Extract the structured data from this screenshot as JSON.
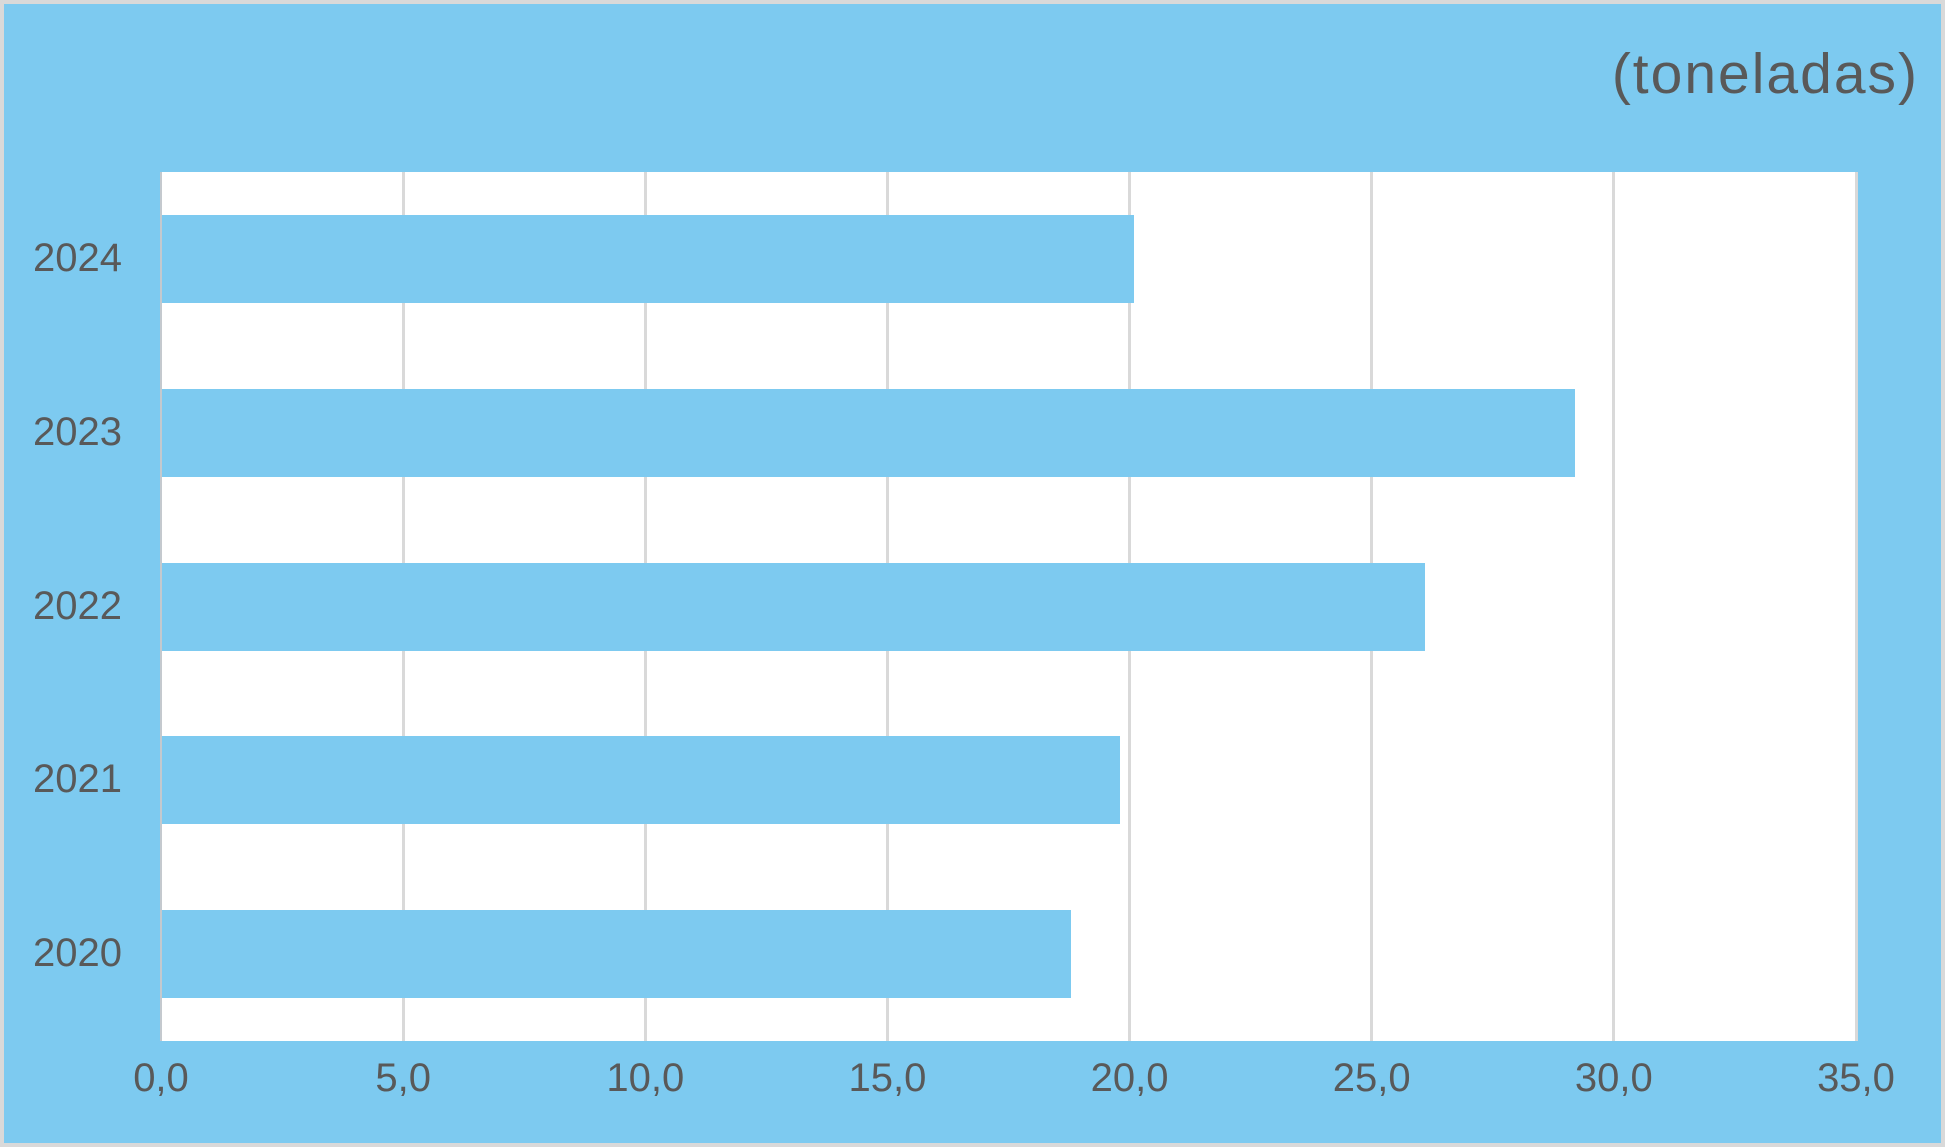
{
  "colors": {
    "background": "#7DCAF0",
    "bar": "#7DCAF0",
    "plot_background": "#FFFFFF",
    "gridline": "#D9D9D9",
    "axis_line": "#C4C9CE",
    "text": "#595959",
    "border": "#D9D9D9"
  },
  "chart_data": {
    "type": "bar",
    "orientation": "horizontal",
    "title": "(toneladas)",
    "categories": [
      "2024",
      "2023",
      "2022",
      "2021",
      "2020"
    ],
    "values": [
      20.1,
      29.2,
      26.1,
      19.8,
      18.8
    ],
    "xlabel": "",
    "ylabel": "",
    "xlim": [
      0,
      35
    ],
    "x_tick_values": [
      0,
      5,
      10,
      15,
      20,
      25,
      30,
      35
    ],
    "x_tick_labels": [
      "0,0",
      "5,0",
      "10,0",
      "15,0",
      "20,0",
      "25,0",
      "30,0",
      "35,0"
    ],
    "grid": "vertical-only",
    "legend": false,
    "data_labels": false
  }
}
